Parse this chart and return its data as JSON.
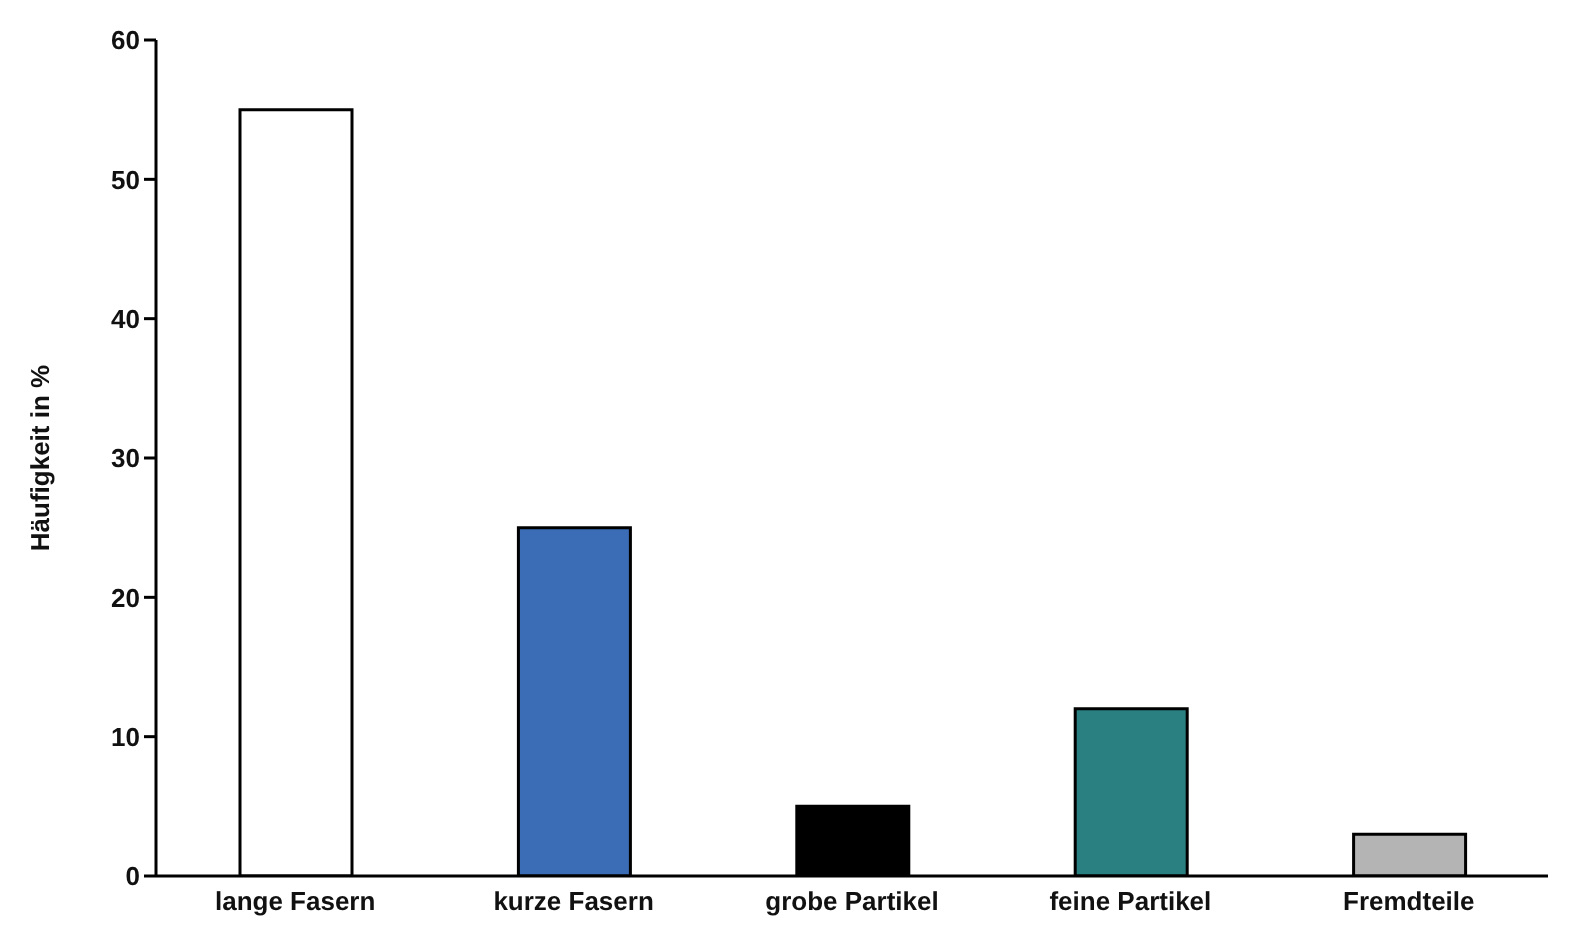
{
  "chart_data": {
    "type": "bar",
    "ylabel": "Häufigkeit in %",
    "categories": [
      "lange Fasern",
      "kurze Fasern",
      "grobe Partikel",
      "feine Partikel",
      "Fremdteile"
    ],
    "values": [
      55,
      25,
      5,
      12,
      3
    ],
    "colors": [
      "#ffffff",
      "#3a6db5",
      "#000000",
      "#2a8080",
      "#b4b4b4"
    ],
    "ylim": [
      0,
      60
    ],
    "yticks": [
      0,
      10,
      20,
      30,
      40,
      50,
      60
    ],
    "grid": false
  }
}
